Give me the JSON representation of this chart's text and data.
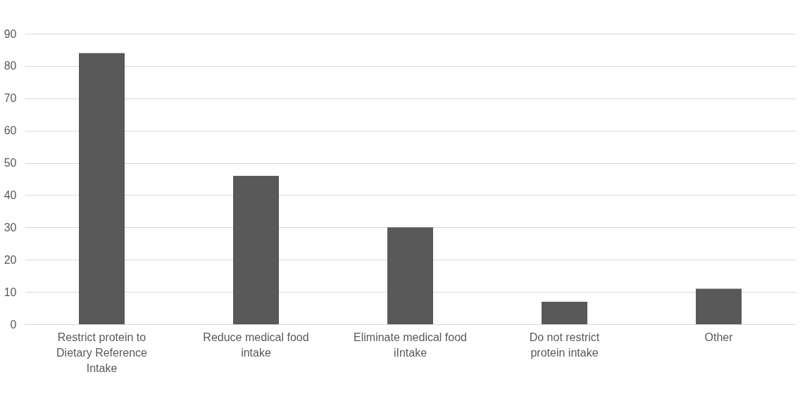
{
  "chart_data": {
    "type": "bar",
    "categories": [
      "Restrict protein to Dietary Reference Intake",
      "Reduce medical food intake",
      "Eliminate medical food iIntake",
      "Do not restrict protein intake",
      "Other"
    ],
    "values": [
      84,
      46,
      30,
      7,
      11
    ],
    "color": "#595959",
    "ylim": [
      0,
      90
    ],
    "yticks": [
      0,
      10,
      20,
      30,
      40,
      50,
      60,
      70,
      80,
      90
    ],
    "grid": "y"
  }
}
